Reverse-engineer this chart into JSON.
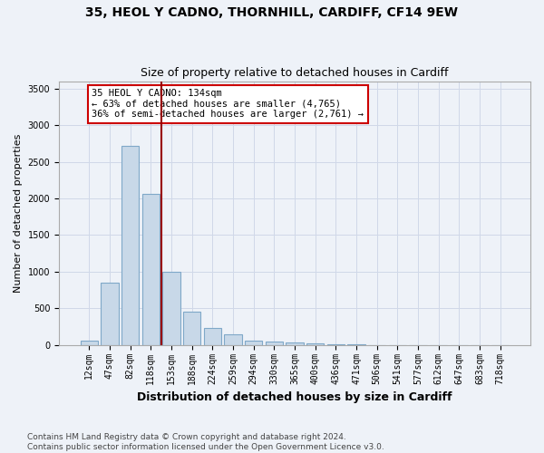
{
  "title": "35, HEOL Y CADNO, THORNHILL, CARDIFF, CF14 9EW",
  "subtitle": "Size of property relative to detached houses in Cardiff",
  "xlabel": "Distribution of detached houses by size in Cardiff",
  "ylabel": "Number of detached properties",
  "bar_labels": [
    "12sqm",
    "47sqm",
    "82sqm",
    "118sqm",
    "153sqm",
    "188sqm",
    "224sqm",
    "259sqm",
    "294sqm",
    "330sqm",
    "365sqm",
    "400sqm",
    "436sqm",
    "471sqm",
    "506sqm",
    "541sqm",
    "577sqm",
    "612sqm",
    "647sqm",
    "683sqm",
    "718sqm"
  ],
  "bar_values": [
    60,
    850,
    2720,
    2060,
    1000,
    450,
    230,
    140,
    65,
    50,
    30,
    25,
    10,
    5,
    2,
    2,
    1,
    1,
    0,
    0,
    0
  ],
  "bar_color": "#c8d8e8",
  "bar_edgecolor": "#7fa8c8",
  "bar_linewidth": 0.8,
  "red_line_x": 3.5,
  "annotation_text": "35 HEOL Y CADNO: 134sqm\n← 63% of detached houses are smaller (4,765)\n36% of semi-detached houses are larger (2,761) →",
  "annotation_box_edgecolor": "#cc0000",
  "annotation_box_facecolor": "#ffffff",
  "ylim": [
    0,
    3600
  ],
  "yticks": [
    0,
    500,
    1000,
    1500,
    2000,
    2500,
    3000,
    3500
  ],
  "grid_color": "#d0d8e8",
  "background_color": "#eef2f8",
  "footer_text": "Contains HM Land Registry data © Crown copyright and database right 2024.\nContains public sector information licensed under the Open Government Licence v3.0.",
  "title_fontsize": 10,
  "subtitle_fontsize": 9,
  "xlabel_fontsize": 9,
  "ylabel_fontsize": 8,
  "tick_fontsize": 7,
  "footer_fontsize": 6.5,
  "annotation_fontsize": 7.5
}
